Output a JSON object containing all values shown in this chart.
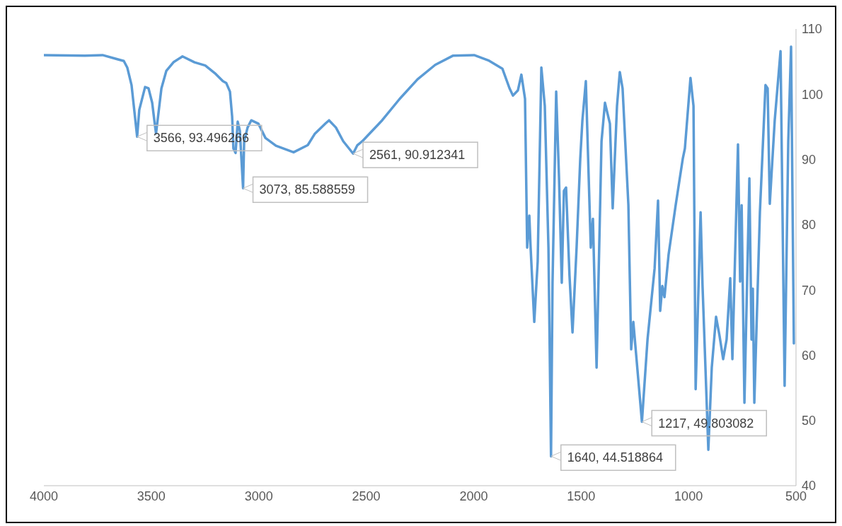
{
  "chart_data": {
    "type": "line",
    "x": [
      4000,
      3809,
      3727,
      3661,
      3628,
      3612,
      3592,
      3566,
      3556,
      3529,
      3513,
      3496,
      3483,
      3478,
      3453,
      3430,
      3397,
      3355,
      3299,
      3249,
      3200,
      3167,
      3151,
      3134,
      3124,
      3118,
      3108,
      3098,
      3088,
      3073,
      3068,
      3052,
      3035,
      3002,
      2969,
      2920,
      2838,
      2772,
      2740,
      2690,
      2673,
      2641,
      2607,
      2561,
      2541,
      2518,
      2426,
      2344,
      2261,
      2179,
      2097,
      1998,
      1932,
      1866,
      1833,
      1817,
      1794,
      1778,
      1761,
      1751,
      1741,
      1735,
      1718,
      1702,
      1685,
      1669,
      1652,
      1640,
      1633,
      1616,
      1603,
      1590,
      1580,
      1570,
      1554,
      1540,
      1521,
      1504,
      1494,
      1478,
      1455,
      1445,
      1428,
      1405,
      1389,
      1366,
      1353,
      1333,
      1320,
      1307,
      1280,
      1267,
      1257,
      1217,
      1191,
      1158,
      1142,
      1132,
      1122,
      1112,
      1093,
      1060,
      1027,
      1017,
      991,
      977,
      967,
      944,
      935,
      921,
      908,
      892,
      872,
      856,
      839,
      823,
      806,
      796,
      770,
      760,
      753,
      740,
      717,
      707,
      701,
      694,
      668,
      642,
      632,
      622,
      599,
      572,
      553,
      536,
      523,
      510
    ],
    "series": [
      {
        "color": "#5b9bd5",
        "values": [
          106.0,
          105.9,
          106.0,
          105.4,
          105.1,
          104.1,
          101.4,
          93.5,
          97.6,
          101.1,
          100.9,
          98.7,
          95.2,
          94.0,
          100.9,
          103.6,
          104.9,
          105.8,
          104.9,
          104.4,
          103.1,
          102.0,
          101.7,
          100.4,
          96.6,
          91.7,
          91.0,
          95.8,
          94.4,
          85.6,
          92.8,
          94.9,
          96.0,
          95.5,
          93.3,
          92.1,
          91.1,
          92.2,
          93.9,
          95.5,
          96.0,
          94.9,
          92.8,
          90.9,
          92.2,
          92.8,
          96.0,
          99.3,
          102.3,
          104.5,
          105.9,
          106.0,
          105.2,
          103.9,
          100.9,
          99.8,
          100.6,
          103.0,
          99.3,
          76.5,
          81.4,
          76.5,
          65.1,
          74.4,
          104.1,
          98.2,
          76.5,
          44.5,
          71.1,
          100.4,
          87.4,
          71.1,
          85.2,
          85.7,
          72.2,
          63.5,
          76.5,
          90.1,
          96.0,
          102.0,
          76.5,
          80.9,
          58.1,
          92.8,
          98.7,
          95.5,
          82.5,
          98.2,
          103.4,
          100.9,
          83.0,
          60.9,
          65.1,
          49.8,
          62.4,
          73.3,
          83.7,
          66.8,
          70.6,
          68.9,
          75.4,
          83.0,
          90.1,
          91.7,
          102.5,
          98.2,
          54.8,
          81.9,
          70.7,
          57.7,
          45.5,
          58.1,
          65.9,
          63.0,
          59.4,
          62.4,
          71.8,
          59.4,
          92.3,
          71.3,
          83.0,
          52.7,
          87.1,
          62.4,
          70.2,
          52.7,
          81.9,
          101.4,
          100.9,
          83.2,
          96.0,
          106.6,
          55.3,
          92.8,
          107.3,
          61.8
        ]
      }
    ],
    "xlim": [
      4000,
      500
    ],
    "xticks": [
      4000,
      3500,
      3000,
      2500,
      2000,
      1500,
      1000,
      500
    ],
    "ylim": [
      40,
      110
    ],
    "yticks": [
      40,
      50,
      60,
      70,
      80,
      90,
      100,
      110
    ],
    "grid": false,
    "legend": false,
    "marker": "none",
    "line_style": "solid",
    "annotations": [
      {
        "text": "3566, 93.496266",
        "x": 3566,
        "y": 93.496266
      },
      {
        "text": "3073, 85.588559",
        "x": 3073,
        "y": 85.588559
      },
      {
        "text": "2561, 90.912341",
        "x": 2561,
        "y": 90.912341
      },
      {
        "text": "1640, 44.518864",
        "x": 1640,
        "y": 44.518864
      },
      {
        "text": "1217, 49.803082",
        "x": 1217,
        "y": 49.803082
      }
    ]
  }
}
